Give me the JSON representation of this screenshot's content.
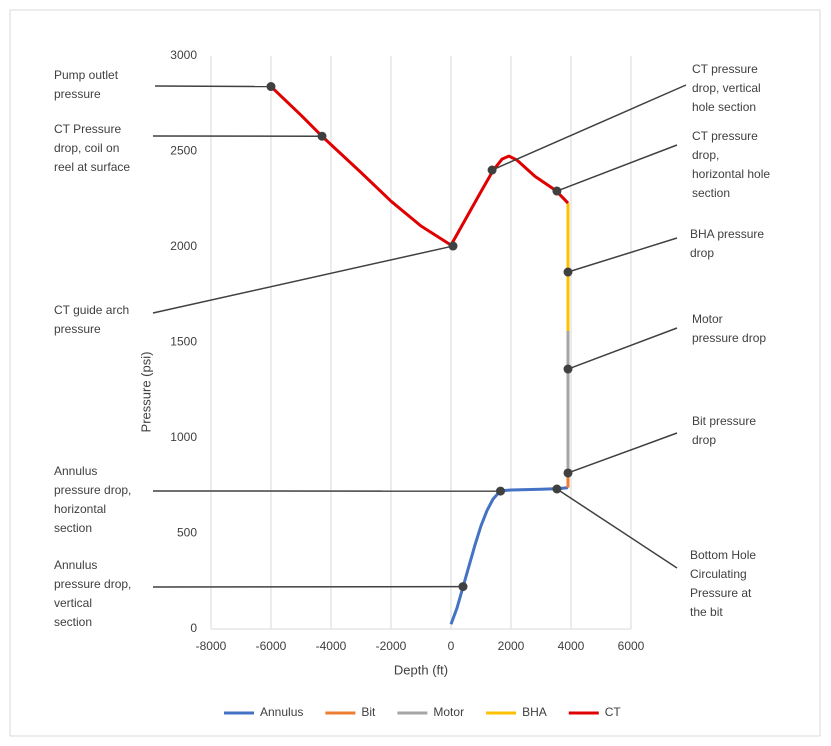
{
  "chart_data": {
    "type": "line",
    "x_label": "Depth (ft)",
    "y_label": "Pressure (psi)",
    "xlim": [
      -8000,
      6000
    ],
    "xticks": [
      -8000,
      -6000,
      -4000,
      -2000,
      0,
      2000,
      4000,
      6000
    ],
    "ylim": [
      0,
      3000
    ],
    "yticks": [
      0,
      500,
      1000,
      1500,
      2000,
      2500,
      3000
    ],
    "grid": "x",
    "legend": "bottom",
    "series": [
      {
        "name": "Annulus",
        "color": "#4472c4",
        "x": [
          0,
          200,
          400,
          600,
          800,
          1000,
          1200,
          1400,
          1600,
          1800,
          2000,
          3000,
          3600,
          3900
        ],
        "values": [
          25,
          110,
          220,
          330,
          440,
          540,
          620,
          680,
          715,
          725,
          728,
          732,
          735,
          740
        ]
      },
      {
        "name": "Bit",
        "color": "#ed7d31",
        "x": [
          3900,
          3900
        ],
        "values": [
          740,
          820
        ]
      },
      {
        "name": "Motor",
        "color": "#a5a5a5",
        "x": [
          3900,
          3900
        ],
        "values": [
          820,
          1560
        ]
      },
      {
        "name": "BHA",
        "color": "#ffc000",
        "x": [
          3900,
          3900
        ],
        "values": [
          1560,
          2230
        ]
      },
      {
        "name": "CT",
        "color": "#e00000",
        "x": [
          -6000,
          -5000,
          -4300,
          -3000,
          -2000,
          -1000,
          -300,
          0,
          500,
          1000,
          1400,
          1700,
          1930,
          2200,
          2800,
          3500,
          3900
        ],
        "values": [
          2840,
          2690,
          2580,
          2390,
          2240,
          2110,
          2040,
          2010,
          2150,
          2290,
          2400,
          2460,
          2476,
          2455,
          2370,
          2295,
          2230
        ]
      }
    ],
    "annotations": [
      {
        "text": [
          "Pump outlet",
          "pressure"
        ],
        "point": [
          -6000,
          2840
        ],
        "side": "left"
      },
      {
        "text": [
          "CT Pressure",
          "drop, coil on",
          "reel at surface"
        ],
        "point": [
          -4300,
          2580
        ],
        "side": "left"
      },
      {
        "text": [
          "CT guide arch",
          "pressure"
        ],
        "point": [
          67,
          2005
        ],
        "side": "left"
      },
      {
        "text": [
          "Annulus",
          "pressure drop,",
          "horizontal",
          "section"
        ],
        "point": [
          1650,
          722
        ],
        "side": "left"
      },
      {
        "text": [
          "Annulus",
          "pressure drop,",
          "vertical",
          "section"
        ],
        "point": [
          400,
          222
        ],
        "side": "left"
      },
      {
        "text": [
          "CT pressure",
          "drop, vertical",
          "hole section"
        ],
        "point": [
          1370,
          2403
        ],
        "side": "right"
      },
      {
        "text": [
          "CT pressure",
          "drop,",
          "horizontal hole",
          "section"
        ],
        "point": [
          3530,
          2293
        ],
        "side": "right"
      },
      {
        "text": [
          "BHA pressure",
          "drop"
        ],
        "point": [
          3900,
          1869
        ],
        "side": "right"
      },
      {
        "text": [
          "Motor",
          "pressure drop"
        ],
        "point": [
          3900,
          1361
        ],
        "side": "right"
      },
      {
        "text": [
          "Bit pressure",
          "drop"
        ],
        "point": [
          3900,
          817
        ],
        "side": "right"
      },
      {
        "text": [
          "Bottom Hole",
          "Circulating",
          "Pressure at",
          "the bit"
        ],
        "point": [
          3530,
          733
        ],
        "side": "right"
      }
    ]
  }
}
